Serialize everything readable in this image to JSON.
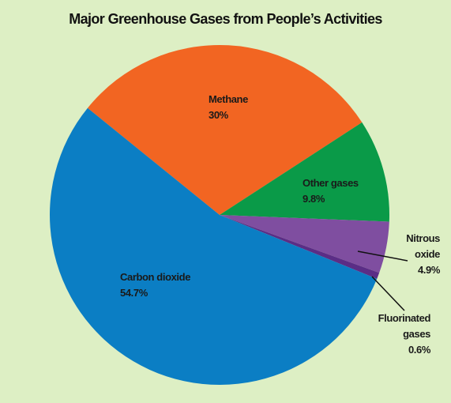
{
  "chart_data": {
    "type": "pie",
    "title": "Major Greenhouse Gases from People’s Activities",
    "categories": [
      "Methane",
      "Other gases",
      "Nitrous oxide",
      "Fluorinated gases",
      "Carbon dioxide"
    ],
    "values": [
      30,
      9.8,
      4.9,
      0.6,
      54.7
    ],
    "value_labels": [
      "30%",
      "9.8%",
      "4.9%",
      "0.6%",
      "54.7%"
    ],
    "colors": [
      "#f26522",
      "#0a9a48",
      "#7f4ea0",
      "#5b2d86",
      "#0b7ec4"
    ]
  }
}
